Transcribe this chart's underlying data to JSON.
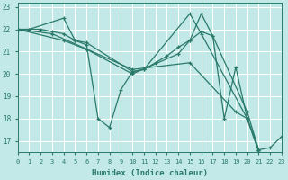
{
  "xlabel": "Humidex (Indice chaleur)",
  "xlim": [
    0,
    23
  ],
  "ylim": [
    16.5,
    23.2
  ],
  "yticks": [
    17,
    18,
    19,
    20,
    21,
    22,
    23
  ],
  "xticks": [
    0,
    1,
    2,
    3,
    4,
    5,
    6,
    7,
    8,
    9,
    10,
    11,
    12,
    13,
    14,
    15,
    16,
    17,
    18,
    19,
    20,
    21,
    22,
    23
  ],
  "bg_color": "#c2e8e8",
  "grid_color": "#ffffff",
  "line_color": "#2a7a6a",
  "lines": [
    {
      "x": [
        0,
        1,
        4,
        5,
        6,
        7,
        8,
        9,
        10,
        11,
        15,
        16,
        20,
        21,
        22,
        23
      ],
      "y": [
        22,
        22,
        22.5,
        21.5,
        21.3,
        18.0,
        17.6,
        19.3,
        20.1,
        20.2,
        22.7,
        21.8,
        18.0,
        16.6,
        16.7,
        17.2
      ]
    },
    {
      "x": [
        0,
        1,
        2,
        3,
        4,
        5,
        6,
        10,
        11,
        12,
        13,
        14,
        15,
        16,
        17,
        20,
        21
      ],
      "y": [
        22,
        22,
        22,
        21.9,
        21.8,
        21.5,
        21.4,
        20.1,
        20.2,
        20.5,
        20.8,
        21.2,
        21.5,
        21.9,
        21.7,
        18.3,
        16.6
      ]
    },
    {
      "x": [
        0,
        3,
        10,
        15,
        19,
        20,
        21
      ],
      "y": [
        22,
        21.8,
        20.2,
        20.5,
        18.3,
        18.0,
        16.6
      ]
    },
    {
      "x": [
        0,
        4,
        6,
        10,
        14,
        15,
        16,
        17,
        18,
        19,
        20,
        21
      ],
      "y": [
        22,
        21.5,
        21.1,
        20.0,
        20.9,
        21.5,
        22.7,
        21.7,
        18.0,
        20.3,
        18.0,
        16.5
      ]
    }
  ]
}
